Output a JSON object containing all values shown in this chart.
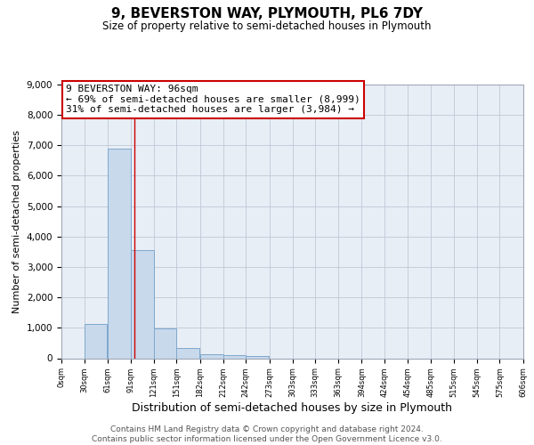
{
  "title": "9, BEVERSTON WAY, PLYMOUTH, PL6 7DY",
  "subtitle": "Size of property relative to semi-detached houses in Plymouth",
  "bar_left_edges": [
    0,
    30,
    61,
    91,
    121,
    151,
    182,
    212,
    242,
    273,
    303,
    333,
    363,
    394,
    424,
    454,
    485,
    515,
    545,
    575
  ],
  "bar_heights": [
    0,
    1130,
    6880,
    3560,
    990,
    350,
    130,
    100,
    80,
    0,
    0,
    0,
    0,
    0,
    0,
    0,
    0,
    0,
    0,
    0
  ],
  "bar_color": "#c8d9ec",
  "bar_edgecolor": "#7fa8cc",
  "property_line_x": 96,
  "annotation_line1": "9 BEVERSTON WAY: 96sqm",
  "annotation_line2": "← 69% of semi-detached houses are smaller (8,999)",
  "annotation_line3": "31% of semi-detached houses are larger (3,984) →",
  "annotation_box_color": "#ffffff",
  "annotation_box_edgecolor": "#cc0000",
  "property_line_color": "#cc0000",
  "xlabel": "Distribution of semi-detached houses by size in Plymouth",
  "ylabel": "Number of semi-detached properties",
  "ylim": [
    0,
    9000
  ],
  "yticks": [
    0,
    1000,
    2000,
    3000,
    4000,
    5000,
    6000,
    7000,
    8000,
    9000
  ],
  "xtick_labels": [
    "0sqm",
    "30sqm",
    "61sqm",
    "91sqm",
    "121sqm",
    "151sqm",
    "182sqm",
    "212sqm",
    "242sqm",
    "273sqm",
    "303sqm",
    "333sqm",
    "363sqm",
    "394sqm",
    "424sqm",
    "454sqm",
    "485sqm",
    "515sqm",
    "545sqm",
    "575sqm",
    "606sqm"
  ],
  "xtick_positions": [
    0,
    30,
    61,
    91,
    121,
    151,
    182,
    212,
    242,
    273,
    303,
    333,
    363,
    394,
    424,
    454,
    485,
    515,
    545,
    575,
    606
  ],
  "grid_color": "#c0c8d8",
  "background_color": "#e8eef5",
  "footer_line1": "Contains HM Land Registry data © Crown copyright and database right 2024.",
  "footer_line2": "Contains public sector information licensed under the Open Government Licence v3.0.",
  "title_fontsize": 11,
  "subtitle_fontsize": 8.5,
  "xlabel_fontsize": 9,
  "ylabel_fontsize": 8,
  "annotation_fontsize": 8,
  "footer_fontsize": 6.5,
  "ytick_fontsize": 7.5,
  "xtick_fontsize": 6
}
